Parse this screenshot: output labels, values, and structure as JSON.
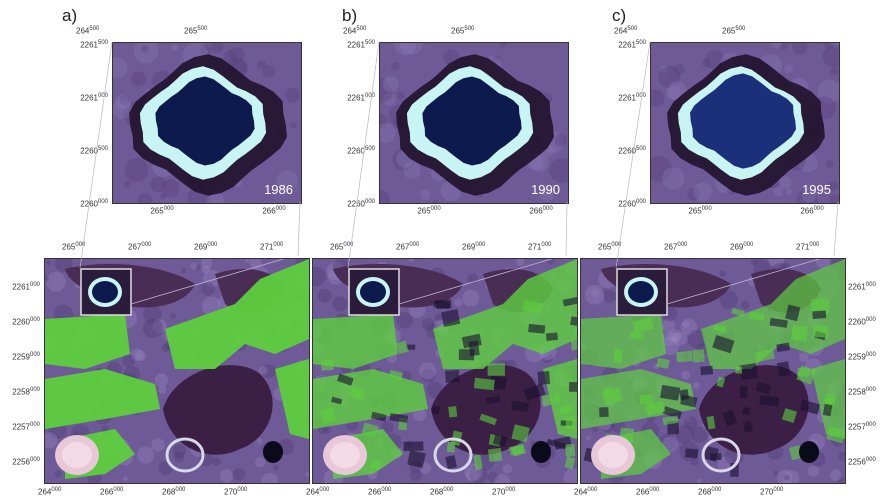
{
  "panels": [
    {
      "letter": "a)",
      "year": "1986"
    },
    {
      "letter": "b)",
      "year": "1990"
    },
    {
      "letter": "c)",
      "year": "1995"
    }
  ],
  "zoom_axes": {
    "top": [
      {
        "big": "264",
        "small": "500"
      },
      {
        "big": "265",
        "small": "500"
      }
    ],
    "bottom": [
      {
        "big": "265",
        "small": "000"
      },
      {
        "big": "266",
        "small": "000"
      }
    ],
    "left": [
      {
        "big": "2261",
        "small": "500"
      },
      {
        "big": "2261",
        "small": "000"
      },
      {
        "big": "2260",
        "small": "500"
      },
      {
        "big": "2260",
        "small": "000"
      }
    ]
  },
  "map_axes": {
    "top": [
      {
        "big": "265",
        "small": "000"
      },
      {
        "big": "267",
        "small": "000"
      },
      {
        "big": "269",
        "small": "000"
      },
      {
        "big": "271",
        "small": "000"
      }
    ],
    "bottom": [
      {
        "big": "264",
        "small": "000"
      },
      {
        "big": "266",
        "small": "000"
      },
      {
        "big": "268",
        "small": "000"
      },
      {
        "big": "270",
        "small": "000"
      }
    ],
    "side": [
      {
        "big": "2261",
        "small": "000"
      },
      {
        "big": "2260",
        "small": "000"
      },
      {
        "big": "2259",
        "small": "000"
      },
      {
        "big": "2258",
        "small": "000"
      },
      {
        "big": "2257",
        "small": "000"
      },
      {
        "big": "2256",
        "small": "000"
      }
    ]
  },
  "colors": {
    "background": "#6e5a97",
    "dark_purple": "#3b1f44",
    "lake": "#0d1a4e",
    "lake_ring": "#c8f4f4",
    "field_green": "#5ecf3e",
    "inset_border": "#dddddd"
  }
}
